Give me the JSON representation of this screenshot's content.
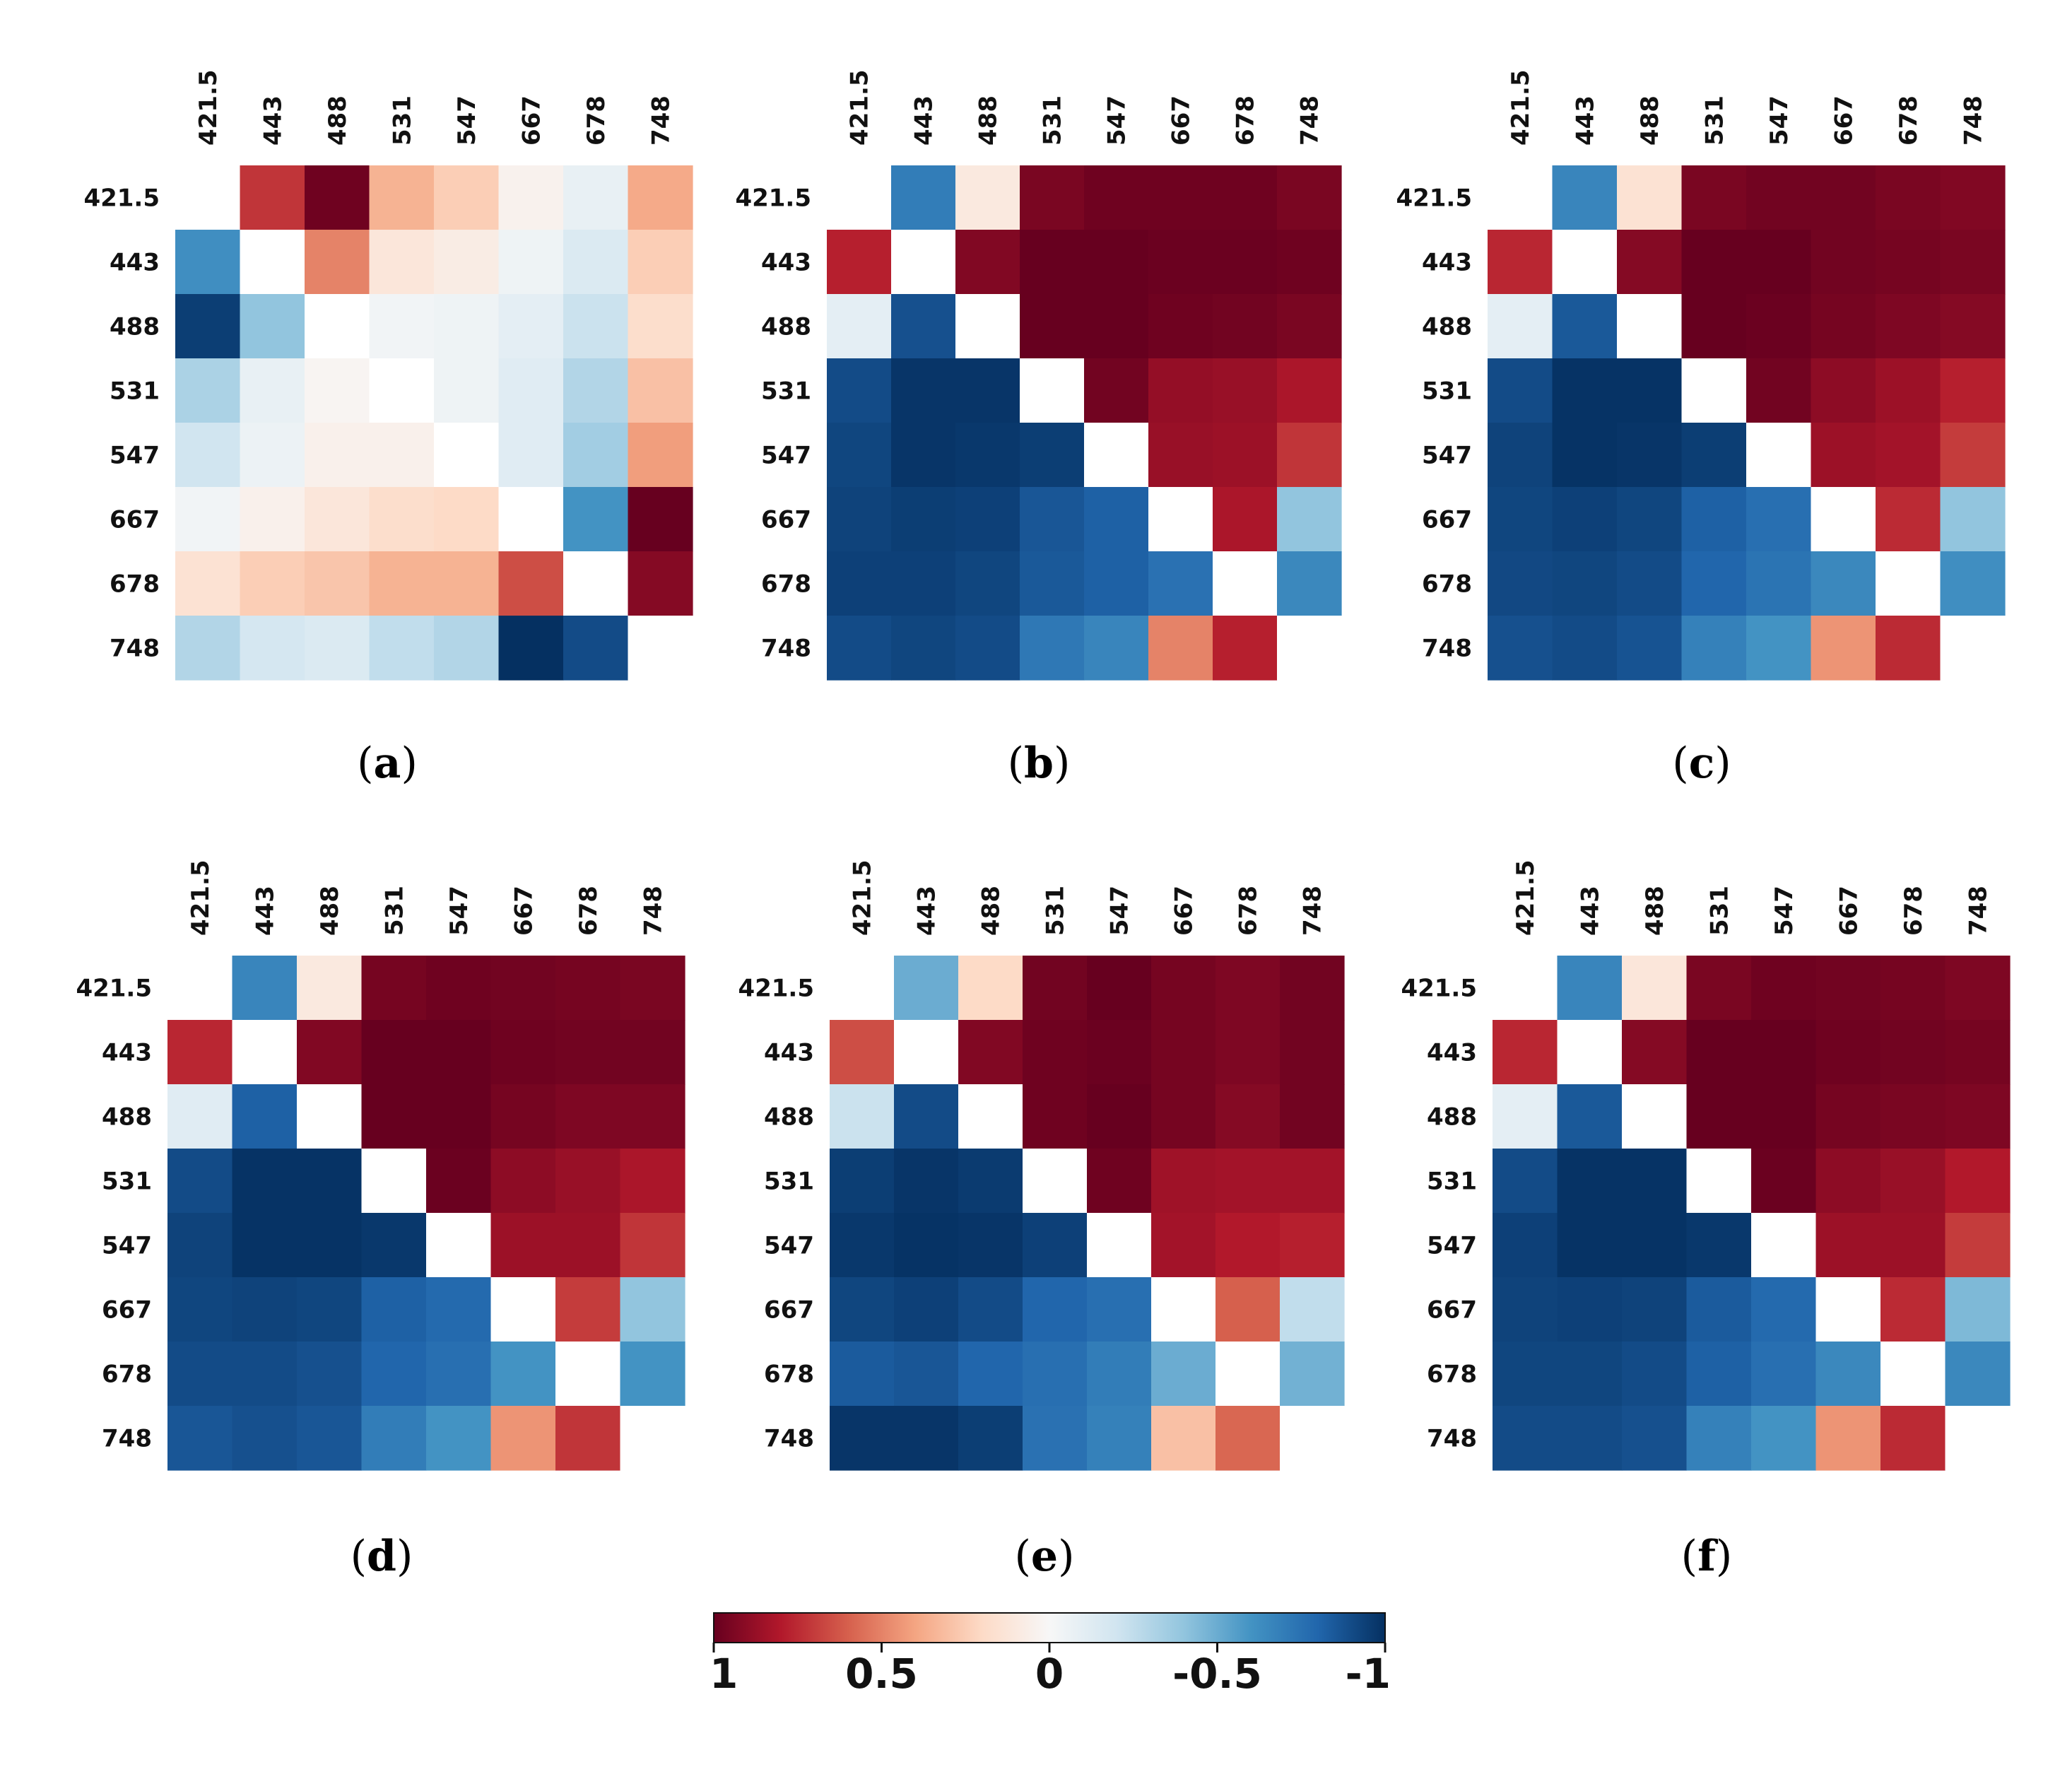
{
  "chart_data": [
    {
      "type": "heatmap",
      "title": "",
      "caption_label": "a",
      "x_tick_labels": [
        "421.5",
        "443",
        "488",
        "531",
        "547",
        "667",
        "678",
        "748"
      ],
      "y_tick_labels": [
        "421.5",
        "443",
        "488",
        "531",
        "547",
        "667",
        "678",
        "748"
      ],
      "values": [
        [
          0,
          0.72,
          0.98,
          0.35,
          0.25,
          0.04,
          -0.08,
          0.38
        ],
        [
          -0.62,
          0,
          0.5,
          0.12,
          0.08,
          -0.05,
          -0.15,
          0.25
        ],
        [
          -0.95,
          -0.4,
          0,
          -0.03,
          -0.05,
          -0.1,
          -0.22,
          0.18
        ],
        [
          -0.32,
          -0.08,
          0.02,
          0,
          -0.05,
          -0.12,
          -0.3,
          0.3
        ],
        [
          -0.2,
          -0.06,
          0.05,
          0.05,
          0,
          -0.12,
          -0.35,
          0.42
        ],
        [
          -0.03,
          0.05,
          0.12,
          0.18,
          0.2,
          0,
          -0.6,
          1.0
        ],
        [
          0.15,
          0.25,
          0.28,
          0.35,
          0.35,
          0.65,
          0,
          0.92
        ],
        [
          -0.3,
          -0.18,
          -0.15,
          -0.25,
          -0.3,
          -1.0,
          -0.9,
          0
        ]
      ]
    },
    {
      "type": "heatmap",
      "title": "",
      "caption_label": "b",
      "x_tick_labels": [
        "421.5",
        "443",
        "488",
        "531",
        "547",
        "667",
        "678",
        "748"
      ],
      "y_tick_labels": [
        "421.5",
        "443",
        "488",
        "531",
        "547",
        "667",
        "678",
        "748"
      ],
      "values": [
        [
          0,
          -0.7,
          0.1,
          0.95,
          0.98,
          0.98,
          0.98,
          0.95
        ],
        [
          0.78,
          0,
          0.93,
          1.0,
          1.0,
          0.99,
          0.99,
          0.98
        ],
        [
          -0.1,
          -0.88,
          0,
          1.0,
          1.0,
          0.98,
          0.97,
          0.95
        ],
        [
          -0.9,
          -0.98,
          -0.98,
          0,
          0.97,
          0.88,
          0.87,
          0.82
        ],
        [
          -0.92,
          -0.98,
          -0.97,
          -0.95,
          0,
          0.87,
          0.86,
          0.72
        ],
        [
          -0.93,
          -0.95,
          -0.94,
          -0.86,
          -0.82,
          0,
          0.82,
          -0.4
        ],
        [
          -0.94,
          -0.94,
          -0.92,
          -0.85,
          -0.82,
          -0.75,
          0,
          -0.65
        ],
        [
          -0.9,
          -0.92,
          -0.9,
          -0.72,
          -0.66,
          0.5,
          0.78,
          0
        ]
      ]
    },
    {
      "type": "heatmap",
      "title": "",
      "caption_label": "c",
      "x_tick_labels": [
        "421.5",
        "443",
        "488",
        "531",
        "547",
        "667",
        "678",
        "748"
      ],
      "y_tick_labels": [
        "421.5",
        "443",
        "488",
        "531",
        "547",
        "667",
        "678",
        "748"
      ],
      "values": [
        [
          0,
          -0.66,
          0.15,
          0.95,
          0.97,
          0.97,
          0.95,
          0.93
        ],
        [
          0.76,
          0,
          0.92,
          1.0,
          1.0,
          0.97,
          0.96,
          0.95
        ],
        [
          -0.1,
          -0.85,
          0,
          1.0,
          0.99,
          0.96,
          0.94,
          0.92
        ],
        [
          -0.9,
          -0.99,
          -0.99,
          0,
          0.97,
          0.9,
          0.86,
          0.78
        ],
        [
          -0.93,
          -0.99,
          -0.98,
          -0.95,
          0,
          0.86,
          0.84,
          0.7
        ],
        [
          -0.92,
          -0.94,
          -0.92,
          -0.82,
          -0.76,
          0,
          0.75,
          -0.4
        ],
        [
          -0.91,
          -0.92,
          -0.9,
          -0.8,
          -0.74,
          -0.65,
          0,
          -0.62
        ],
        [
          -0.88,
          -0.9,
          -0.87,
          -0.68,
          -0.6,
          0.45,
          0.75,
          0
        ]
      ]
    },
    {
      "type": "heatmap",
      "title": "",
      "caption_label": "d",
      "x_tick_labels": [
        "421.5",
        "443",
        "488",
        "531",
        "547",
        "667",
        "678",
        "748"
      ],
      "y_tick_labels": [
        "421.5",
        "443",
        "488",
        "531",
        "547",
        "667",
        "678",
        "748"
      ],
      "values": [
        [
          0,
          -0.66,
          0.1,
          0.96,
          0.98,
          0.97,
          0.96,
          0.95
        ],
        [
          0.76,
          0,
          0.93,
          1.0,
          1.0,
          0.98,
          0.97,
          0.97
        ],
        [
          -0.12,
          -0.82,
          0,
          1.0,
          1.0,
          0.96,
          0.94,
          0.94
        ],
        [
          -0.9,
          -0.99,
          -0.99,
          0,
          0.99,
          0.9,
          0.87,
          0.82
        ],
        [
          -0.93,
          -0.99,
          -0.99,
          -0.97,
          0,
          0.86,
          0.86,
          0.72
        ],
        [
          -0.92,
          -0.93,
          -0.92,
          -0.82,
          -0.78,
          0,
          0.7,
          -0.4
        ],
        [
          -0.9,
          -0.9,
          -0.88,
          -0.8,
          -0.76,
          -0.6,
          0,
          -0.6
        ],
        [
          -0.86,
          -0.88,
          -0.86,
          -0.7,
          -0.6,
          0.45,
          0.72,
          0
        ]
      ]
    },
    {
      "type": "heatmap",
      "title": "",
      "caption_label": "e",
      "x_tick_labels": [
        "421.5",
        "443",
        "488",
        "531",
        "547",
        "667",
        "678",
        "748"
      ],
      "y_tick_labels": [
        "421.5",
        "443",
        "488",
        "531",
        "547",
        "667",
        "678",
        "748"
      ],
      "values": [
        [
          0,
          -0.5,
          0.2,
          0.97,
          1.0,
          0.96,
          0.94,
          0.97
        ],
        [
          0.65,
          0,
          0.93,
          0.98,
          0.99,
          0.96,
          0.94,
          0.97
        ],
        [
          -0.22,
          -0.9,
          0,
          0.98,
          1.0,
          0.96,
          0.92,
          0.97
        ],
        [
          -0.95,
          -0.98,
          -0.96,
          0,
          0.98,
          0.85,
          0.84,
          0.84
        ],
        [
          -0.97,
          -0.99,
          -0.98,
          -0.94,
          0,
          0.84,
          0.8,
          0.78
        ],
        [
          -0.92,
          -0.94,
          -0.9,
          -0.8,
          -0.76,
          0,
          0.6,
          -0.25
        ],
        [
          -0.84,
          -0.86,
          -0.8,
          -0.76,
          -0.7,
          -0.5,
          0,
          -0.48
        ],
        [
          -0.98,
          -0.98,
          -0.95,
          -0.75,
          -0.68,
          0.3,
          0.58,
          0
        ]
      ]
    },
    {
      "type": "heatmap",
      "title": "",
      "caption_label": "f",
      "x_tick_labels": [
        "421.5",
        "443",
        "488",
        "531",
        "547",
        "667",
        "678",
        "748"
      ],
      "y_tick_labels": [
        "421.5",
        "443",
        "488",
        "531",
        "547",
        "667",
        "678",
        "748"
      ],
      "values": [
        [
          0,
          -0.66,
          0.12,
          0.95,
          0.98,
          0.97,
          0.96,
          0.94
        ],
        [
          0.76,
          0,
          0.92,
          1.0,
          1.0,
          0.98,
          0.97,
          0.96
        ],
        [
          -0.1,
          -0.85,
          0,
          1.0,
          1.0,
          0.96,
          0.95,
          0.94
        ],
        [
          -0.9,
          -0.99,
          -0.99,
          0,
          0.99,
          0.9,
          0.87,
          0.8
        ],
        [
          -0.94,
          -0.99,
          -0.99,
          -0.97,
          0,
          0.86,
          0.86,
          0.7
        ],
        [
          -0.93,
          -0.94,
          -0.93,
          -0.84,
          -0.78,
          0,
          0.75,
          -0.45
        ],
        [
          -0.92,
          -0.92,
          -0.9,
          -0.82,
          -0.76,
          -0.65,
          0,
          -0.65
        ],
        [
          -0.9,
          -0.9,
          -0.88,
          -0.68,
          -0.6,
          0.45,
          0.75,
          0
        ]
      ]
    }
  ],
  "colorbar": {
    "min": -1,
    "max": 1,
    "direction": "1 to -1, left to right",
    "tick_labels": [
      "1",
      "0.5",
      "0",
      "-0.5",
      "-1"
    ],
    "tick_values": [
      1,
      0.5,
      0,
      -0.5,
      -1
    ],
    "colormap": "RdBu",
    "color_stops": [
      "#67001f",
      "#b2182b",
      "#d6604d",
      "#f4a582",
      "#fddbc7",
      "#f7f7f7",
      "#d1e5f0",
      "#92c5de",
      "#4393c3",
      "#2166ac",
      "#053061"
    ]
  },
  "diagonal_color": "#ffffff"
}
